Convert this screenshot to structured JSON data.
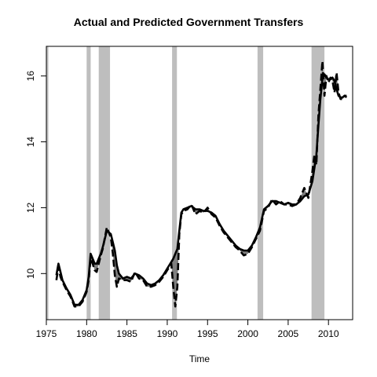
{
  "chart_data": {
    "type": "line",
    "title": "Actual and Predicted Government Transfers",
    "xlabel": "Time",
    "ylabel": "",
    "xlim": [
      1975,
      2013
    ],
    "ylim": [
      8.6,
      16.9
    ],
    "x_ticks": [
      1975,
      1980,
      1985,
      1990,
      1995,
      2000,
      2005,
      2010
    ],
    "y_ticks": [
      10,
      12,
      14,
      16
    ],
    "grid": false,
    "legend": "none",
    "recessions": [
      [
        1975.0,
        1975.25
      ],
      [
        1980.0,
        1980.5
      ],
      [
        1981.5,
        1982.9
      ],
      [
        1990.6,
        1991.2
      ],
      [
        2001.2,
        2001.9
      ],
      [
        2007.9,
        2009.5
      ]
    ],
    "colors": {
      "actual": "#000000",
      "predicted": "#000000",
      "recession": "#bebebe",
      "gap_fill": "#808080"
    },
    "series": [
      {
        "style": "solid",
        "x": [
          1976.25,
          1976.5,
          1976.75,
          1977,
          1977.5,
          1978,
          1978.5,
          1979,
          1979.5,
          1980,
          1980.25,
          1980.5,
          1980.75,
          1981,
          1981.25,
          1981.5,
          1981.75,
          1982,
          1982.5,
          1983,
          1983.25,
          1983.5,
          1983.75,
          1984,
          1984.5,
          1985,
          1985.5,
          1986,
          1986.5,
          1987,
          1987.5,
          1988,
          1988.5,
          1989,
          1989.5,
          1990,
          1990.5,
          1990.75,
          1991,
          1991.25,
          1991.5,
          1991.75,
          1992,
          1992.5,
          1993,
          1993.5,
          1994,
          1994.5,
          1995,
          1995.5,
          1996,
          1996.5,
          1997,
          1997.5,
          1998,
          1998.5,
          1999,
          1999.5,
          2000,
          2000.5,
          2001,
          2001.5,
          2002,
          2002.5,
          2003,
          2003.5,
          2004,
          2004.5,
          2005,
          2005.5,
          2006,
          2006.5,
          2007,
          2007.5,
          2008,
          2008.25,
          2008.5,
          2008.75,
          2009,
          2009.25,
          2009.5,
          2009.75,
          2010,
          2010.25,
          2010.5,
          2010.75,
          2011,
          2011.25,
          2011.5,
          2011.75,
          2012,
          2012.25
        ],
        "values": [
          9.95,
          10.3,
          10.05,
          9.8,
          9.55,
          9.35,
          9.05,
          9.05,
          9.2,
          9.5,
          9.9,
          10.6,
          10.45,
          10.3,
          10.3,
          10.45,
          10.6,
          10.8,
          11.3,
          11.2,
          10.95,
          10.7,
          10.25,
          10.0,
          9.85,
          9.9,
          9.85,
          10.0,
          9.95,
          9.85,
          9.7,
          9.65,
          9.7,
          9.8,
          9.95,
          10.15,
          10.35,
          10.45,
          10.6,
          10.75,
          11.3,
          11.85,
          11.95,
          12.0,
          12.05,
          11.95,
          11.95,
          11.9,
          11.9,
          11.85,
          11.75,
          11.5,
          11.3,
          11.15,
          11.0,
          10.85,
          10.75,
          10.7,
          10.7,
          10.85,
          11.1,
          11.4,
          11.95,
          12.05,
          12.2,
          12.2,
          12.15,
          12.1,
          12.15,
          12.1,
          12.1,
          12.2,
          12.35,
          12.4,
          12.8,
          13.2,
          13.6,
          14.5,
          15.3,
          15.9,
          16.05,
          15.95,
          15.9,
          15.9,
          15.95,
          15.85,
          15.6,
          15.4,
          15.35,
          15.35,
          15.4,
          15.4
        ]
      },
      {
        "style": "dashed",
        "x": [
          1976.25,
          1976.5,
          1976.75,
          1977,
          1977.5,
          1978,
          1978.5,
          1979,
          1979.5,
          1980,
          1980.25,
          1980.5,
          1980.75,
          1981,
          1981.25,
          1981.5,
          1981.75,
          1982,
          1982.5,
          1983,
          1983.25,
          1983.5,
          1983.75,
          1984,
          1984.5,
          1985,
          1985.5,
          1986,
          1986.5,
          1987,
          1987.5,
          1988,
          1988.5,
          1989,
          1989.5,
          1990,
          1990.5,
          1990.75,
          1991,
          1991.25,
          1991.5,
          1991.75,
          1992,
          1992.5,
          1993,
          1993.5,
          1994,
          1994.5,
          1995,
          1995.5,
          1996,
          1996.5,
          1997,
          1997.5,
          1998,
          1998.5,
          1999,
          1999.5,
          2000,
          2000.5,
          2001,
          2001.5,
          2002,
          2002.5,
          2003,
          2003.5,
          2004,
          2004.5,
          2005,
          2005.5,
          2006,
          2006.5,
          2007,
          2007.5,
          2008,
          2008.25,
          2008.5,
          2008.75,
          2009,
          2009.25,
          2009.5,
          2009.75,
          2010,
          2010.25,
          2010.5,
          2010.75,
          2011,
          2011.25,
          2011.5,
          2011.75,
          2012,
          2012.25
        ],
        "values": [
          9.8,
          10.2,
          9.9,
          9.75,
          9.5,
          9.3,
          9.0,
          9.0,
          9.15,
          9.45,
          9.8,
          10.45,
          10.3,
          10.1,
          10.05,
          10.3,
          10.55,
          10.75,
          11.4,
          11.1,
          10.6,
          9.95,
          9.6,
          9.85,
          9.8,
          9.8,
          9.75,
          10.05,
          9.85,
          9.8,
          9.6,
          9.6,
          9.65,
          9.75,
          9.9,
          10.1,
          10.3,
          9.6,
          9.0,
          9.6,
          11.2,
          11.8,
          11.9,
          11.95,
          12.1,
          11.8,
          11.9,
          11.85,
          12.0,
          11.8,
          11.7,
          11.45,
          11.25,
          11.1,
          10.95,
          10.8,
          10.7,
          10.55,
          10.6,
          10.8,
          11.05,
          11.3,
          11.9,
          12.0,
          12.25,
          12.1,
          12.2,
          12.1,
          12.1,
          12.05,
          12.1,
          12.3,
          12.6,
          12.3,
          13.1,
          13.6,
          13.3,
          14.8,
          15.6,
          16.45,
          15.4,
          16.0,
          15.8,
          15.95,
          15.85,
          15.5,
          16.1,
          15.5,
          15.3,
          15.3,
          15.4,
          15.35
        ]
      }
    ]
  }
}
